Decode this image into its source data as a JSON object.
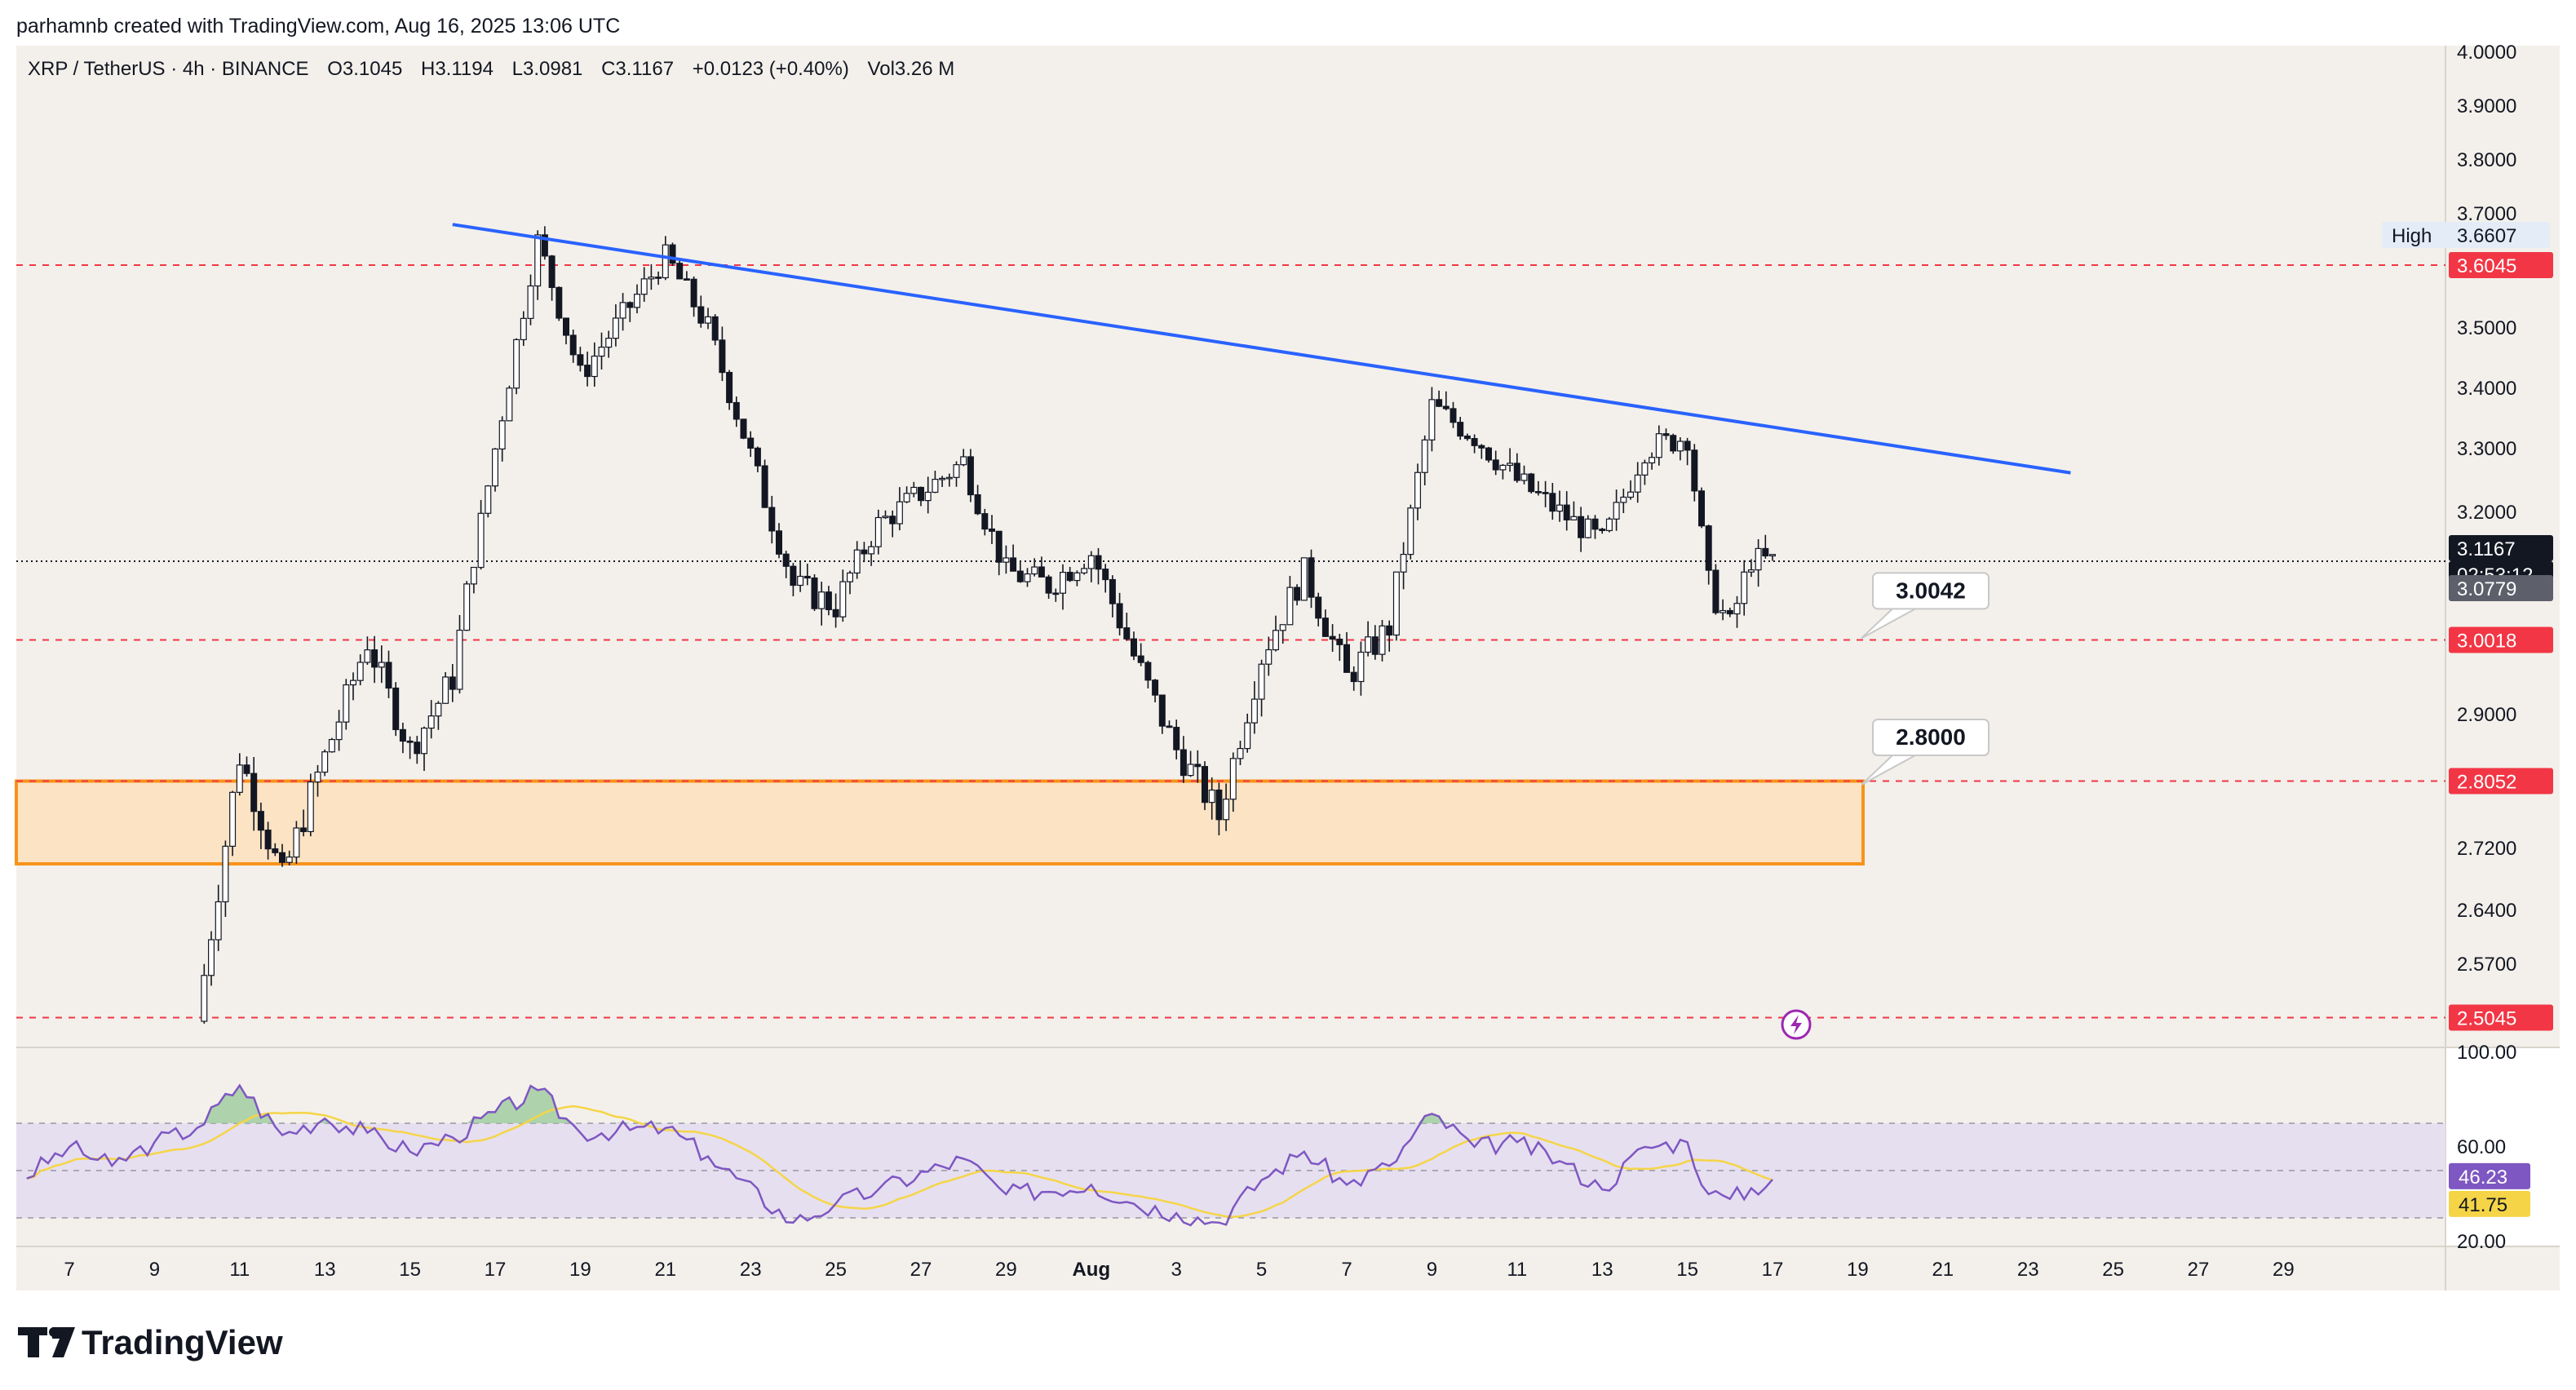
{
  "header": {
    "byline": "parhamnb created with TradingView.com, Aug 16, 2025 13:06 UTC",
    "symbol": "XRP / TetherUS · 4h · BINANCE",
    "open": "O3.1045",
    "high": "H3.1194",
    "low": "L3.0981",
    "close": "C3.1167",
    "change": "+0.0123 (+0.40%)",
    "volume": "Vol3.26 M"
  },
  "footer": {
    "brand": "TradingView"
  },
  "colors": {
    "up": "#ffffff",
    "down": "#131722",
    "trendline": "#2962ff",
    "zone_border": "#f7931a",
    "zone_fill": "#fbe3c4",
    "level_line": "#f23645",
    "rsi": "#7e57c2",
    "rsi_ma": "#f5d547",
    "rsi_band": "#e6dff0"
  },
  "chart_data": {
    "type": "candlestick",
    "price_axis": {
      "ticks": [
        "4.0000",
        "3.9000",
        "3.8000",
        "3.7000",
        "3.5000",
        "3.4000",
        "3.3000",
        "3.2000",
        "2.9000",
        "2.7200",
        "2.6400",
        "2.5700"
      ],
      "tick_values": [
        4.0,
        3.9,
        3.8,
        3.7,
        3.5,
        3.4,
        3.3,
        3.2,
        2.9,
        2.72,
        2.64,
        2.57
      ]
    },
    "price_labels": [
      {
        "text": "3.6045",
        "value": 3.6045,
        "kind": "level"
      },
      {
        "text": "3.0018",
        "value": 3.0018,
        "kind": "level"
      },
      {
        "text": "2.8052",
        "value": 2.8052,
        "kind": "level"
      },
      {
        "text": "2.5045",
        "value": 2.5045,
        "kind": "level"
      },
      {
        "text": "3.1167",
        "value": 3.1167,
        "kind": "last"
      },
      {
        "text": "02:53:12",
        "value": 3.1167,
        "kind": "timer"
      },
      {
        "text": "3.0779",
        "value": 3.0779,
        "kind": "gray"
      }
    ],
    "high_marker": {
      "label": "High",
      "text": "3.6607",
      "value": 3.6607
    },
    "horizontal_levels": [
      3.6045,
      3.0018,
      2.8052,
      2.5045
    ],
    "current_price": 3.1167,
    "support_zone": {
      "top": 2.8052,
      "bottom": 2.7
    },
    "trendline": {
      "start": {
        "date": "Jul 16",
        "price": 3.68
      },
      "end": {
        "date": "Aug 23",
        "price": 3.262
      }
    },
    "callouts": [
      {
        "text": "3.0042",
        "price": 3.0042
      },
      {
        "text": "2.8000",
        "price": 2.8
      }
    ],
    "time_axis": {
      "labels": [
        "7",
        "9",
        "11",
        "13",
        "15",
        "17",
        "19",
        "21",
        "23",
        "25",
        "27",
        "29",
        "Aug",
        "3",
        "5",
        "7",
        "9",
        "11",
        "13",
        "15",
        "17",
        "19",
        "21",
        "23",
        "25",
        "27",
        "29"
      ]
    },
    "swing_points": [
      {
        "date": "Jul 10",
        "price": 2.5
      },
      {
        "date": "Jul 11",
        "price": 2.84
      },
      {
        "date": "Jul 12",
        "price": 2.68
      },
      {
        "date": "Jul 14",
        "price": 3.0
      },
      {
        "date": "Jul 15",
        "price": 2.85
      },
      {
        "date": "Jul 16",
        "price": 2.95
      },
      {
        "date": "Jul 18",
        "price": 3.65
      },
      {
        "date": "Jul 19",
        "price": 3.42
      },
      {
        "date": "Jul 21",
        "price": 3.62
      },
      {
        "date": "Jul 22",
        "price": 3.5
      },
      {
        "date": "Jul 24",
        "price": 3.08
      },
      {
        "date": "Jul 25",
        "price": 3.05
      },
      {
        "date": "Jul 26",
        "price": 3.18
      },
      {
        "date": "Jul 28",
        "price": 3.28
      },
      {
        "date": "Jul 29",
        "price": 3.1
      },
      {
        "date": "Jul 30",
        "price": 3.08
      },
      {
        "date": "Jul 31",
        "price": 3.13
      },
      {
        "date": "Aug 1",
        "price": 2.98
      },
      {
        "date": "Aug 2",
        "price": 2.85
      },
      {
        "date": "Aug 3",
        "price": 2.76
      },
      {
        "date": "Aug 4",
        "price": 2.98
      },
      {
        "date": "Aug 5",
        "price": 3.1
      },
      {
        "date": "Aug 6",
        "price": 2.95
      },
      {
        "date": "Aug 7",
        "price": 3.02
      },
      {
        "date": "Aug 8",
        "price": 3.37
      },
      {
        "date": "Aug 9",
        "price": 3.32
      },
      {
        "date": "Aug 10",
        "price": 3.25
      },
      {
        "date": "Aug 11",
        "price": 3.2
      },
      {
        "date": "Aug 12",
        "price": 3.15
      },
      {
        "date": "Aug 13",
        "price": 3.3
      },
      {
        "date": "Aug 14",
        "price": 3.32
      },
      {
        "date": "Aug 14.5",
        "price": 3.08
      },
      {
        "date": "Aug 15",
        "price": 3.02
      },
      {
        "date": "Aug 15.5",
        "price": 3.12
      },
      {
        "date": "Aug 16",
        "price": 3.1167
      }
    ],
    "rsi": {
      "ticks": [
        "100.00",
        "60.00",
        "20.00"
      ],
      "tick_values": [
        100,
        60,
        20
      ],
      "band": [
        30,
        70
      ],
      "value": "46.23",
      "ma_value": "41.75",
      "swing_points": [
        {
          "date": "Jul 6",
          "rsi": 48
        },
        {
          "date": "Jul 7",
          "rsi": 60
        },
        {
          "date": "Jul 8",
          "rsi": 52
        },
        {
          "date": "Jul 9",
          "rsi": 62
        },
        {
          "date": "Jul 10",
          "rsi": 68
        },
        {
          "date": "Jul 11",
          "rsi": 86
        },
        {
          "date": "Jul 12",
          "rsi": 65
        },
        {
          "date": "Jul 13",
          "rsi": 72
        },
        {
          "date": "Jul 14",
          "rsi": 66
        },
        {
          "date": "Jul 15",
          "rsi": 58
        },
        {
          "date": "Jul 16",
          "rsi": 64
        },
        {
          "date": "Jul 18",
          "rsi": 84
        },
        {
          "date": "Jul 19",
          "rsi": 66
        },
        {
          "date": "Jul 21",
          "rsi": 68
        },
        {
          "date": "Jul 22",
          "rsi": 56
        },
        {
          "date": "Jul 24",
          "rsi": 28
        },
        {
          "date": "Jul 25",
          "rsi": 36
        },
        {
          "date": "Jul 26",
          "rsi": 42
        },
        {
          "date": "Jul 28",
          "rsi": 55
        },
        {
          "date": "Jul 29",
          "rsi": 40
        },
        {
          "date": "Jul 31",
          "rsi": 44
        },
        {
          "date": "Aug 1",
          "rsi": 36
        },
        {
          "date": "Aug 2",
          "rsi": 32
        },
        {
          "date": "Aug 3",
          "rsi": 28
        },
        {
          "date": "Aug 4",
          "rsi": 46
        },
        {
          "date": "Aug 5",
          "rsi": 58
        },
        {
          "date": "Aug 6",
          "rsi": 44
        },
        {
          "date": "Aug 7",
          "rsi": 52
        },
        {
          "date": "Aug 8",
          "rsi": 74
        },
        {
          "date": "Aug 9",
          "rsi": 60
        },
        {
          "date": "Aug 10",
          "rsi": 62
        },
        {
          "date": "Aug 11",
          "rsi": 54
        },
        {
          "date": "Aug 12",
          "rsi": 42
        },
        {
          "date": "Aug 13",
          "rsi": 60
        },
        {
          "date": "Aug 14",
          "rsi": 62
        },
        {
          "date": "Aug 14.5",
          "rsi": 40
        },
        {
          "date": "Aug 15",
          "rsi": 38
        },
        {
          "date": "Aug 16",
          "rsi": 46.23
        }
      ]
    }
  }
}
